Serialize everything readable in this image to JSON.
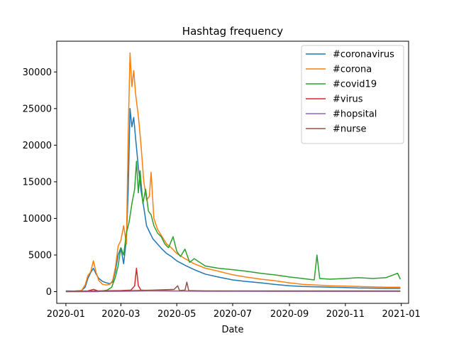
{
  "chart_data": {
    "type": "line",
    "title": "Hashtag frequency",
    "xlabel": "Date",
    "ylabel": "",
    "x_type": "date",
    "xlim": [
      "2019-12-22",
      "2021-01-09"
    ],
    "ylim": [
      -1600,
      34200
    ],
    "x_ticks": [
      "2020-01",
      "2020-03",
      "2020-05",
      "2020-07",
      "2020-09",
      "2020-11",
      "2021-01"
    ],
    "y_ticks": [
      0,
      5000,
      10000,
      15000,
      20000,
      25000,
      30000
    ],
    "grid": false,
    "legend_position": "top-right",
    "series": [
      {
        "name": "#coronavirus",
        "color": "#1f77b4",
        "points": [
          [
            "2020-01-01",
            100
          ],
          [
            "2020-01-10",
            80
          ],
          [
            "2020-01-18",
            150
          ],
          [
            "2020-01-22",
            600
          ],
          [
            "2020-01-25",
            1800
          ],
          [
            "2020-01-28",
            2600
          ],
          [
            "2020-01-31",
            3200
          ],
          [
            "2020-02-03",
            2400
          ],
          [
            "2020-02-06",
            1800
          ],
          [
            "2020-02-10",
            1400
          ],
          [
            "2020-02-14",
            1200
          ],
          [
            "2020-02-18",
            1100
          ],
          [
            "2020-02-21",
            1300
          ],
          [
            "2020-02-24",
            2800
          ],
          [
            "2020-02-27",
            5000
          ],
          [
            "2020-03-01",
            6000
          ],
          [
            "2020-03-04",
            3800
          ],
          [
            "2020-03-07",
            7200
          ],
          [
            "2020-03-09",
            14000
          ],
          [
            "2020-03-11",
            25000
          ],
          [
            "2020-03-13",
            22500
          ],
          [
            "2020-03-15",
            23800
          ],
          [
            "2020-03-17",
            21000
          ],
          [
            "2020-03-20",
            17000
          ],
          [
            "2020-03-23",
            13800
          ],
          [
            "2020-03-26",
            11500
          ],
          [
            "2020-03-29",
            9000
          ],
          [
            "2020-04-01",
            8200
          ],
          [
            "2020-04-05",
            7200
          ],
          [
            "2020-04-10",
            6500
          ],
          [
            "2020-04-15",
            5800
          ],
          [
            "2020-04-20",
            5200
          ],
          [
            "2020-04-25",
            4800
          ],
          [
            "2020-05-01",
            4200
          ],
          [
            "2020-05-10",
            3600
          ],
          [
            "2020-05-20",
            3000
          ],
          [
            "2020-06-01",
            2400
          ],
          [
            "2020-06-15",
            2000
          ],
          [
            "2020-07-01",
            1600
          ],
          [
            "2020-07-15",
            1400
          ],
          [
            "2020-08-01",
            1200
          ],
          [
            "2020-08-15",
            1000
          ],
          [
            "2020-09-01",
            800
          ],
          [
            "2020-09-15",
            700
          ],
          [
            "2020-10-01",
            650
          ],
          [
            "2020-10-15",
            600
          ],
          [
            "2020-11-01",
            550
          ],
          [
            "2020-11-15",
            500
          ],
          [
            "2020-12-01",
            480
          ],
          [
            "2020-12-15",
            450
          ],
          [
            "2020-12-31",
            450
          ]
        ]
      },
      {
        "name": "#corona",
        "color": "#ff7f0e",
        "points": [
          [
            "2020-01-01",
            80
          ],
          [
            "2020-01-10",
            60
          ],
          [
            "2020-01-18",
            150
          ],
          [
            "2020-01-22",
            900
          ],
          [
            "2020-01-25",
            2200
          ],
          [
            "2020-01-28",
            2700
          ],
          [
            "2020-01-31",
            4200
          ],
          [
            "2020-02-03",
            2600
          ],
          [
            "2020-02-06",
            1500
          ],
          [
            "2020-02-10",
            1000
          ],
          [
            "2020-02-14",
            900
          ],
          [
            "2020-02-18",
            1000
          ],
          [
            "2020-02-21",
            1500
          ],
          [
            "2020-02-24",
            3300
          ],
          [
            "2020-02-27",
            6200
          ],
          [
            "2020-03-01",
            7000
          ],
          [
            "2020-03-04",
            9000
          ],
          [
            "2020-03-07",
            6500
          ],
          [
            "2020-03-09",
            22000
          ],
          [
            "2020-03-11",
            32600
          ],
          [
            "2020-03-13",
            28000
          ],
          [
            "2020-03-15",
            30200
          ],
          [
            "2020-03-17",
            27000
          ],
          [
            "2020-03-20",
            24000
          ],
          [
            "2020-03-23",
            20000
          ],
          [
            "2020-03-26",
            15000
          ],
          [
            "2020-03-29",
            12500
          ],
          [
            "2020-04-01",
            13000
          ],
          [
            "2020-04-03",
            16300
          ],
          [
            "2020-04-06",
            10000
          ],
          [
            "2020-04-10",
            8500
          ],
          [
            "2020-04-15",
            7500
          ],
          [
            "2020-04-20",
            6500
          ],
          [
            "2020-04-25",
            6000
          ],
          [
            "2020-05-01",
            5200
          ],
          [
            "2020-05-10",
            4500
          ],
          [
            "2020-05-20",
            3800
          ],
          [
            "2020-06-01",
            3200
          ],
          [
            "2020-06-15",
            2800
          ],
          [
            "2020-07-01",
            2300
          ],
          [
            "2020-07-15",
            2000
          ],
          [
            "2020-08-01",
            1700
          ],
          [
            "2020-08-15",
            1500
          ],
          [
            "2020-09-01",
            1200
          ],
          [
            "2020-09-15",
            1000
          ],
          [
            "2020-10-01",
            900
          ],
          [
            "2020-10-15",
            800
          ],
          [
            "2020-11-01",
            750
          ],
          [
            "2020-11-15",
            700
          ],
          [
            "2020-12-01",
            650
          ],
          [
            "2020-12-15",
            600
          ],
          [
            "2020-12-31",
            600
          ]
        ]
      },
      {
        "name": "#covid19",
        "color": "#2ca02c",
        "points": [
          [
            "2020-01-01",
            0
          ],
          [
            "2020-02-05",
            0
          ],
          [
            "2020-02-10",
            100
          ],
          [
            "2020-02-15",
            200
          ],
          [
            "2020-02-20",
            600
          ],
          [
            "2020-02-24",
            2000
          ],
          [
            "2020-02-27",
            3500
          ],
          [
            "2020-03-01",
            6000
          ],
          [
            "2020-03-04",
            5000
          ],
          [
            "2020-03-07",
            8000
          ],
          [
            "2020-03-10",
            9500
          ],
          [
            "2020-03-13",
            12000
          ],
          [
            "2020-03-16",
            14000
          ],
          [
            "2020-03-18",
            17800
          ],
          [
            "2020-03-20",
            13500
          ],
          [
            "2020-03-22",
            16500
          ],
          [
            "2020-03-25",
            12000
          ],
          [
            "2020-03-28",
            14000
          ],
          [
            "2020-03-31",
            11000
          ],
          [
            "2020-04-03",
            10500
          ],
          [
            "2020-04-06",
            9000
          ],
          [
            "2020-04-10",
            8000
          ],
          [
            "2020-04-14",
            7500
          ],
          [
            "2020-04-18",
            6500
          ],
          [
            "2020-04-22",
            6000
          ],
          [
            "2020-04-27",
            7500
          ],
          [
            "2020-05-01",
            5500
          ],
          [
            "2020-05-05",
            4800
          ],
          [
            "2020-05-10",
            5800
          ],
          [
            "2020-05-15",
            4000
          ],
          [
            "2020-05-20",
            4500
          ],
          [
            "2020-06-01",
            3500
          ],
          [
            "2020-06-15",
            3200
          ],
          [
            "2020-07-01",
            3000
          ],
          [
            "2020-07-15",
            2800
          ],
          [
            "2020-08-01",
            2500
          ],
          [
            "2020-08-15",
            2300
          ],
          [
            "2020-09-01",
            2000
          ],
          [
            "2020-09-15",
            1800
          ],
          [
            "2020-09-28",
            1600
          ],
          [
            "2020-10-01",
            5000
          ],
          [
            "2020-10-04",
            1800
          ],
          [
            "2020-10-15",
            1700
          ],
          [
            "2020-11-01",
            1800
          ],
          [
            "2020-11-15",
            1900
          ],
          [
            "2020-12-01",
            1800
          ],
          [
            "2020-12-15",
            1900
          ],
          [
            "2020-12-28",
            2500
          ],
          [
            "2020-12-31",
            1700
          ]
        ]
      },
      {
        "name": "#virus",
        "color": "#d62728",
        "points": [
          [
            "2020-01-01",
            50
          ],
          [
            "2020-01-25",
            100
          ],
          [
            "2020-01-31",
            300
          ],
          [
            "2020-02-05",
            100
          ],
          [
            "2020-03-01",
            150
          ],
          [
            "2020-03-12",
            200
          ],
          [
            "2020-03-16",
            800
          ],
          [
            "2020-03-18",
            3200
          ],
          [
            "2020-03-20",
            800
          ],
          [
            "2020-03-23",
            200
          ],
          [
            "2020-04-01",
            150
          ],
          [
            "2020-05-01",
            100
          ],
          [
            "2020-07-01",
            80
          ],
          [
            "2020-09-01",
            60
          ],
          [
            "2020-11-01",
            50
          ],
          [
            "2020-12-31",
            50
          ]
        ]
      },
      {
        "name": "#hopsital",
        "color": "#9467bd",
        "points": [
          [
            "2020-01-01",
            0
          ],
          [
            "2020-03-01",
            50
          ],
          [
            "2020-04-01",
            100
          ],
          [
            "2020-06-01",
            50
          ],
          [
            "2020-08-01",
            50
          ],
          [
            "2020-10-01",
            50
          ],
          [
            "2020-12-31",
            50
          ]
        ]
      },
      {
        "name": "#nurse",
        "color": "#8c564b",
        "points": [
          [
            "2020-01-01",
            50
          ],
          [
            "2020-03-01",
            100
          ],
          [
            "2020-04-05",
            200
          ],
          [
            "2020-04-28",
            300
          ],
          [
            "2020-05-02",
            800
          ],
          [
            "2020-05-04",
            150
          ],
          [
            "2020-05-10",
            200
          ],
          [
            "2020-05-12",
            1300
          ],
          [
            "2020-05-14",
            150
          ],
          [
            "2020-06-01",
            100
          ],
          [
            "2020-08-01",
            100
          ],
          [
            "2020-10-01",
            100
          ],
          [
            "2020-12-31",
            100
          ]
        ]
      }
    ]
  }
}
